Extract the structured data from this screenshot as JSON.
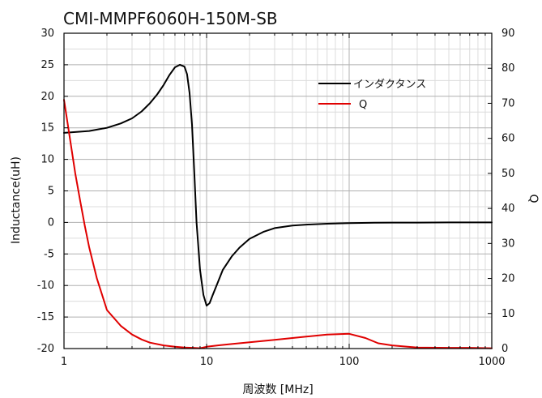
{
  "chart_data": {
    "type": "line",
    "title": "CMI-MMPF6060H-150M-SB",
    "xlabel": "周波数 [MHz]",
    "ylabel": "Inductance(uH)",
    "y2label": "Q",
    "xscale": "log",
    "xlim": [
      1,
      1000
    ],
    "ylim": [
      -20,
      30
    ],
    "y2lim": [
      0,
      90
    ],
    "grid": true,
    "legend_position": "top-right",
    "x_ticks": [
      "1",
      "10",
      "100",
      "1000"
    ],
    "y_ticks": [
      "30",
      "25",
      "20",
      "15",
      "10",
      "5",
      "0",
      "-5",
      "-10",
      "-15",
      "-20"
    ],
    "y2_ticks": [
      "90",
      "80",
      "70",
      "60",
      "50",
      "40",
      "30",
      "20",
      "10",
      "0"
    ],
    "series": [
      {
        "name": "インダクタンス",
        "axis": "left",
        "color": "#000000",
        "x": [
          1,
          1.5,
          2,
          2.5,
          3,
          3.5,
          4,
          4.5,
          5,
          5.5,
          6,
          6.5,
          7,
          7.3,
          7.6,
          7.9,
          8.2,
          8.5,
          9,
          9.5,
          10,
          10.5,
          11,
          12,
          13,
          15,
          17,
          20,
          25,
          30,
          40,
          50,
          70,
          100,
          150,
          200,
          300,
          500,
          700,
          1000
        ],
        "values": [
          14.2,
          14.5,
          15.0,
          15.7,
          16.5,
          17.6,
          18.9,
          20.3,
          21.8,
          23.4,
          24.6,
          25.0,
          24.7,
          23.5,
          20.5,
          15.5,
          8.0,
          0.0,
          -7.5,
          -11.5,
          -13.2,
          -12.8,
          -11.6,
          -9.5,
          -7.5,
          -5.4,
          -4.0,
          -2.6,
          -1.5,
          -0.9,
          -0.5,
          -0.35,
          -0.2,
          -0.1,
          -0.05,
          -0.03,
          -0.02,
          0.0,
          0.0,
          0.0
        ]
      },
      {
        "name": "Q",
        "axis": "right",
        "color": "#e00000",
        "x": [
          1,
          1.1,
          1.2,
          1.3,
          1.4,
          1.5,
          1.7,
          2,
          2.5,
          3,
          3.5,
          4,
          5,
          6,
          7,
          8,
          9,
          10,
          12,
          15,
          20,
          30,
          50,
          70,
          100,
          130,
          160,
          200,
          300,
          500,
          700,
          1000
        ],
        "values": [
          71,
          60,
          50,
          42,
          35,
          29,
          20,
          11,
          6.5,
          4.0,
          2.6,
          1.7,
          0.9,
          0.5,
          0.3,
          0.2,
          0.1,
          0.5,
          0.9,
          1.3,
          1.8,
          2.5,
          3.4,
          4.0,
          4.2,
          3.0,
          1.5,
          0.9,
          0.3,
          0.2,
          0.2,
          0.1
        ]
      }
    ]
  }
}
